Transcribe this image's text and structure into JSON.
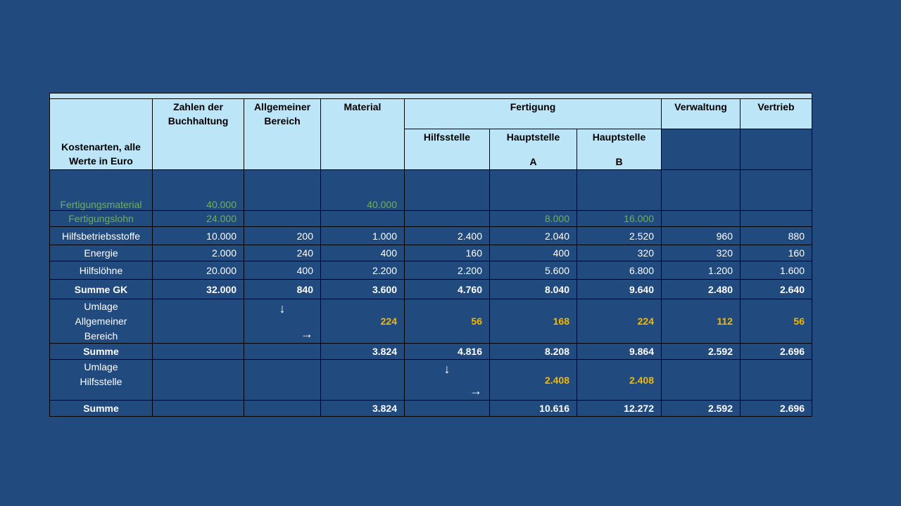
{
  "table": {
    "header": {
      "cost_type": "Kostenarten, alle Werte in Euro",
      "columns": [
        "Zahlen der Buchhaltung",
        "Allgemeiner Bereich",
        "Material",
        "Fertigung",
        "Verwaltung",
        "Vertrieb"
      ],
      "subcolumns": [
        [
          "Hilfsstelle"
        ],
        [
          "Hauptstelle",
          "A"
        ],
        [
          "Hauptstelle",
          "B"
        ]
      ]
    },
    "rows": [
      {
        "label": "Fertigungsmaterial",
        "label_color": "#6fb050",
        "value_color": "#6fb050",
        "bold": false,
        "cells": [
          "40.000",
          null,
          "40.000",
          null,
          null,
          null,
          null,
          null
        ]
      },
      {
        "label": "Fertigungslohn",
        "label_color": "#6fb050",
        "value_color": "#6fb050",
        "bold": false,
        "cells": [
          "24.000",
          null,
          null,
          null,
          "8.000",
          "16.000",
          null,
          null
        ]
      },
      {
        "label": "Hilfsbetriebsstoffe",
        "label_color": "#ffffff",
        "value_color": "#ffffff",
        "bold": false,
        "cells": [
          "10.000",
          "200",
          "1.000",
          "2.400",
          "2.040",
          "2.520",
          "960",
          "880"
        ]
      },
      {
        "label": "Energie",
        "label_color": "#ffffff",
        "value_color": "#ffffff",
        "bold": false,
        "cells": [
          "2.000",
          "240",
          "400",
          "160",
          "400",
          "320",
          "320",
          "160"
        ]
      },
      {
        "label": "Hilfslöhne",
        "label_color": "#ffffff",
        "value_color": "#ffffff",
        "bold": false,
        "cells": [
          "20.000",
          "400",
          "2.200",
          "2.200",
          "5.600",
          "6.800",
          "1.200",
          "1.600"
        ]
      },
      {
        "label": "Summe GK",
        "label_color": "#ffffff",
        "value_color": "#ffffff",
        "bold": true,
        "cells": [
          "32.000",
          "840",
          "3.600",
          "4.760",
          "8.040",
          "9.640",
          "2.480",
          "2.640"
        ]
      },
      {
        "label": "Umlage\nAllgemeiner\nBereich",
        "label_color": "#ffffff",
        "value_color": "#f5b800",
        "bold": true,
        "cells": [
          null,
          null,
          "224",
          "56",
          "168",
          "224",
          "112",
          "56"
        ],
        "arrow_col": 1,
        "arrows": [
          "↓",
          "→"
        ]
      },
      {
        "label": "Summe",
        "label_color": "#ffffff",
        "value_color": "#ffffff",
        "bold": true,
        "cells": [
          null,
          null,
          "3.824",
          "4.816",
          "8.208",
          "9.864",
          "2.592",
          "2.696"
        ]
      },
      {
        "label": "Umlage\nHilfsstelle",
        "label_color": "#ffffff",
        "value_color": "#f5b800",
        "bold": true,
        "cells": [
          null,
          null,
          null,
          null,
          "2.408",
          "2.408",
          null,
          null
        ],
        "arrow_col": 3,
        "arrows": [
          "↓",
          "→"
        ]
      },
      {
        "label": "Summe",
        "label_color": "#ffffff",
        "value_color": "#ffffff",
        "bold": true,
        "cells": [
          null,
          null,
          "3.824",
          null,
          "10.616",
          "12.272",
          "2.592",
          "2.696"
        ]
      }
    ]
  }
}
